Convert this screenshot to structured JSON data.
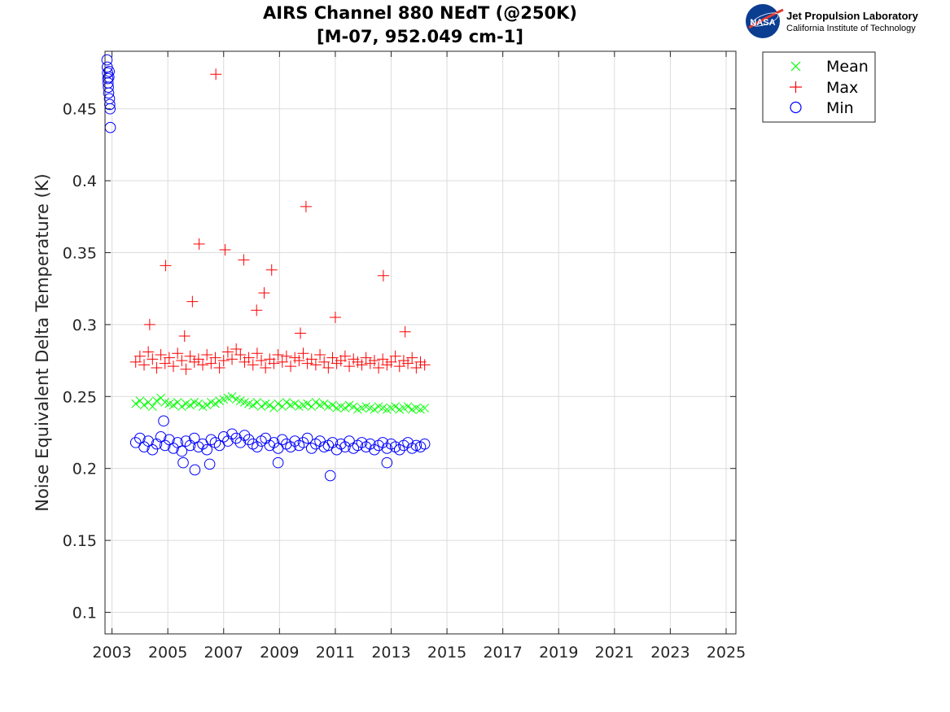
{
  "logo": {
    "org_name": "Jet Propulsion Laboratory",
    "org_sub": "California Institute of Technology",
    "badge_text": "NASA"
  },
  "chart_data": {
    "type": "scatter",
    "title_line1": "AIRS Channel 880 NEdT (@250K)",
    "title_line2": "[M-07, 952.049 cm-1]",
    "xlabel": "",
    "ylabel": "Noise Equivalent Delta Temperature (K)",
    "xlim": [
      2002.75,
      2025.35
    ],
    "ylim": [
      0.085,
      0.49
    ],
    "x_ticks": [
      2003,
      2005,
      2007,
      2009,
      2011,
      2013,
      2015,
      2017,
      2019,
      2021,
      2023,
      2025
    ],
    "x_tick_labels": [
      "2003",
      "2005",
      "2007",
      "2009",
      "2011",
      "2013",
      "2015",
      "2017",
      "2019",
      "2021",
      "2023",
      "2025"
    ],
    "y_ticks": [
      0.1,
      0.15,
      0.2,
      0.25,
      0.3,
      0.35,
      0.4,
      0.45
    ],
    "y_tick_labels": [
      "0.1",
      "0.15",
      "0.2",
      "0.25",
      "0.3",
      "0.35",
      "0.4",
      "0.45"
    ],
    "grid": true,
    "legend_position": "outside-top-right",
    "series": [
      {
        "name": "Mean",
        "marker": "x",
        "color": "#00ff00",
        "x": [
          2003.85,
          2004.0,
          2004.15,
          2004.3,
          2004.45,
          2004.6,
          2004.75,
          2004.9,
          2005.05,
          2005.2,
          2005.35,
          2005.5,
          2005.65,
          2005.8,
          2005.95,
          2006.1,
          2006.25,
          2006.4,
          2006.55,
          2006.7,
          2006.85,
          2007.0,
          2007.15,
          2007.3,
          2007.45,
          2007.6,
          2007.75,
          2007.9,
          2008.05,
          2008.2,
          2008.35,
          2008.5,
          2008.65,
          2008.8,
          2008.95,
          2009.1,
          2009.25,
          2009.4,
          2009.55,
          2009.7,
          2009.85,
          2010.0,
          2010.15,
          2010.3,
          2010.45,
          2010.6,
          2010.75,
          2010.9,
          2011.05,
          2011.2,
          2011.35,
          2011.5,
          2011.65,
          2011.8,
          2011.95,
          2012.1,
          2012.25,
          2012.4,
          2012.55,
          2012.7,
          2012.85,
          2013.0,
          2013.15,
          2013.3,
          2013.45,
          2013.6,
          2013.75,
          2013.9,
          2014.05,
          2014.2
        ],
        "y": [
          0.245,
          0.247,
          0.244,
          0.246,
          0.243,
          0.247,
          0.249,
          0.246,
          0.245,
          0.244,
          0.246,
          0.243,
          0.245,
          0.244,
          0.246,
          0.245,
          0.243,
          0.244,
          0.246,
          0.245,
          0.247,
          0.248,
          0.249,
          0.25,
          0.248,
          0.247,
          0.246,
          0.245,
          0.244,
          0.246,
          0.243,
          0.245,
          0.244,
          0.242,
          0.245,
          0.243,
          0.246,
          0.244,
          0.245,
          0.243,
          0.244,
          0.245,
          0.243,
          0.246,
          0.244,
          0.245,
          0.243,
          0.244,
          0.242,
          0.243,
          0.242,
          0.244,
          0.243,
          0.241,
          0.242,
          0.243,
          0.242,
          0.241,
          0.243,
          0.242,
          0.241,
          0.242,
          0.243,
          0.241,
          0.242,
          0.243,
          0.241,
          0.242,
          0.241,
          0.242
        ]
      },
      {
        "name": "Max",
        "marker": "+",
        "color": "#ff0000",
        "x": [
          2003.85,
          2004.0,
          2004.15,
          2004.3,
          2004.45,
          2004.6,
          2004.75,
          2004.9,
          2005.05,
          2005.2,
          2005.35,
          2005.5,
          2005.65,
          2005.8,
          2005.95,
          2006.1,
          2006.25,
          2006.4,
          2006.55,
          2006.7,
          2006.85,
          2007.0,
          2007.15,
          2007.3,
          2007.45,
          2007.6,
          2007.75,
          2007.9,
          2008.05,
          2008.2,
          2008.35,
          2008.5,
          2008.65,
          2008.8,
          2008.95,
          2009.1,
          2009.25,
          2009.4,
          2009.55,
          2009.7,
          2009.85,
          2010.0,
          2010.15,
          2010.3,
          2010.45,
          2010.6,
          2010.75,
          2010.9,
          2011.05,
          2011.2,
          2011.35,
          2011.5,
          2011.65,
          2011.8,
          2011.95,
          2012.1,
          2012.25,
          2012.4,
          2012.55,
          2012.7,
          2012.85,
          2013.0,
          2013.15,
          2013.3,
          2013.45,
          2013.6,
          2013.75,
          2013.9,
          2014.05,
          2014.2,
          2004.92,
          2005.88,
          2006.12,
          2006.72,
          2007.05,
          2007.72,
          2008.18,
          2008.45,
          2008.72,
          2009.95,
          2011.0,
          2012.72,
          2004.35,
          2013.5,
          2005.6,
          2009.75
        ],
        "y": [
          0.274,
          0.278,
          0.272,
          0.281,
          0.276,
          0.27,
          0.279,
          0.273,
          0.277,
          0.271,
          0.28,
          0.275,
          0.269,
          0.278,
          0.274,
          0.276,
          0.272,
          0.279,
          0.273,
          0.277,
          0.27,
          0.275,
          0.281,
          0.276,
          0.283,
          0.279,
          0.274,
          0.277,
          0.272,
          0.28,
          0.275,
          0.27,
          0.276,
          0.273,
          0.279,
          0.274,
          0.278,
          0.271,
          0.277,
          0.275,
          0.28,
          0.273,
          0.276,
          0.272,
          0.279,
          0.274,
          0.27,
          0.277,
          0.273,
          0.275,
          0.278,
          0.271,
          0.276,
          0.274,
          0.272,
          0.277,
          0.273,
          0.275,
          0.27,
          0.276,
          0.272,
          0.274,
          0.278,
          0.271,
          0.275,
          0.273,
          0.277,
          0.27,
          0.274,
          0.272,
          0.341,
          0.316,
          0.356,
          0.474,
          0.352,
          0.345,
          0.31,
          0.322,
          0.338,
          0.382,
          0.305,
          0.334,
          0.3,
          0.295,
          0.292,
          0.294
        ]
      },
      {
        "name": "Min",
        "marker": "o",
        "color": "#0000ff",
        "x": [
          2002.82,
          2002.83,
          2002.84,
          2002.85,
          2002.86,
          2002.87,
          2002.88,
          2002.89,
          2002.9,
          2002.91,
          2002.92,
          2002.93,
          2002.94,
          2003.85,
          2004.0,
          2004.15,
          2004.3,
          2004.45,
          2004.6,
          2004.75,
          2004.9,
          2005.05,
          2005.2,
          2005.35,
          2005.5,
          2005.65,
          2005.8,
          2005.95,
          2006.1,
          2006.25,
          2006.4,
          2006.55,
          2006.7,
          2006.85,
          2007.0,
          2007.15,
          2007.3,
          2007.45,
          2007.6,
          2007.75,
          2007.9,
          2008.05,
          2008.2,
          2008.35,
          2008.5,
          2008.65,
          2008.8,
          2008.95,
          2009.1,
          2009.25,
          2009.4,
          2009.55,
          2009.7,
          2009.85,
          2010.0,
          2010.15,
          2010.3,
          2010.45,
          2010.6,
          2010.75,
          2010.9,
          2011.05,
          2011.2,
          2011.35,
          2011.5,
          2011.65,
          2011.8,
          2011.95,
          2012.1,
          2012.25,
          2012.4,
          2012.55,
          2012.7,
          2012.85,
          2013.0,
          2013.15,
          2013.3,
          2013.45,
          2013.6,
          2013.75,
          2013.9,
          2014.05,
          2014.2,
          2010.82,
          2005.97,
          2004.85,
          2005.55,
          2006.5,
          2008.95,
          2012.85
        ],
        "y": [
          0.484,
          0.479,
          0.475,
          0.471,
          0.468,
          0.465,
          0.461,
          0.472,
          0.476,
          0.457,
          0.453,
          0.45,
          0.437,
          0.218,
          0.221,
          0.215,
          0.219,
          0.213,
          0.217,
          0.222,
          0.216,
          0.22,
          0.214,
          0.218,
          0.212,
          0.219,
          0.216,
          0.221,
          0.215,
          0.217,
          0.213,
          0.22,
          0.218,
          0.216,
          0.222,
          0.219,
          0.224,
          0.221,
          0.218,
          0.223,
          0.22,
          0.217,
          0.215,
          0.219,
          0.221,
          0.216,
          0.218,
          0.214,
          0.22,
          0.217,
          0.215,
          0.219,
          0.216,
          0.218,
          0.221,
          0.214,
          0.217,
          0.219,
          0.215,
          0.216,
          0.218,
          0.213,
          0.217,
          0.215,
          0.219,
          0.214,
          0.216,
          0.218,
          0.215,
          0.217,
          0.213,
          0.216,
          0.218,
          0.214,
          0.217,
          0.215,
          0.213,
          0.216,
          0.218,
          0.214,
          0.216,
          0.215,
          0.217,
          0.195,
          0.199,
          0.233,
          0.204,
          0.203,
          0.204,
          0.204
        ]
      }
    ]
  }
}
